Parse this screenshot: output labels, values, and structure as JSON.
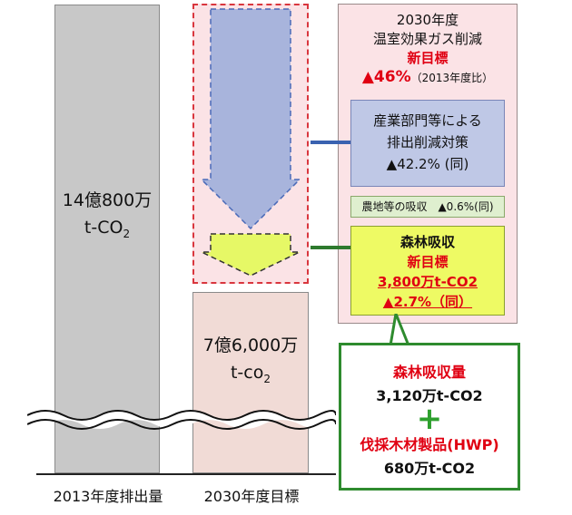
{
  "bars": {
    "bar_2013_value": "14億800万",
    "bar_2013_unit": "t-CO",
    "bar_2013_sub": "2",
    "bar_2030_value": "7億6,000万",
    "bar_2030_unit": "t-co",
    "bar_2030_sub": "2"
  },
  "axis": {
    "label_2013": "2013年度排出量",
    "label_2030": "2030年度目標"
  },
  "target": {
    "line1": "2030年度",
    "line2": "温室効果ガス削減",
    "line3": "新目標",
    "percent": "▲46%",
    "basis": "（2013年度比）"
  },
  "industry": {
    "line1": "産業部門等による",
    "line2": "排出削減対策",
    "line3": "▲42.2% (同)"
  },
  "farm": {
    "text": "農地等の吸収　▲0.6%(同)"
  },
  "forest": {
    "line1": "森林吸収",
    "line2": "新目標",
    "line3": "3,800万t-CO2",
    "line4": "▲2.7%（同）"
  },
  "breakdown": {
    "label1": "森林吸収量",
    "value1": "3,120万t-CO2",
    "plus": "+",
    "label2": "伐採木材製品(HWP)",
    "value2": "680万t-CO2"
  },
  "colors": {
    "red": "#e00012",
    "green": "#2e8b2e",
    "blue_arrow": "#a8b4dc",
    "yellow_arrow": "#e6f866"
  }
}
